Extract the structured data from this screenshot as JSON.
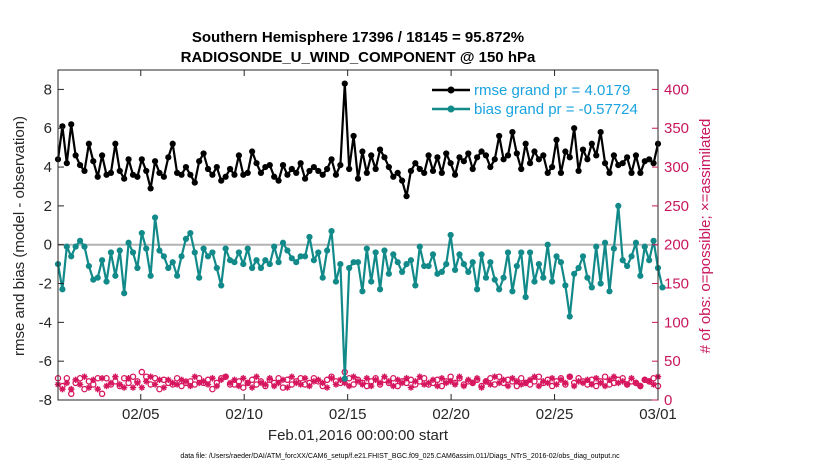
{
  "chart_data": {
    "type": "line",
    "title": "Southern Hemisphere 17396 / 18145 = 95.872%",
    "subtitle": "RADIOSONDE_U_WIND_COMPONENT @ 150 hPa",
    "xlabel": "Feb.01,2016 00:00:00 start",
    "ylabel": "rmse and bias (model - observation)",
    "ylabel_right": "# of obs: o=possible; ×=assimilated",
    "footnote": "data file: /Users/raeder/DAI/ATM_forcXX/CAM6_setup/f.e21.FHIST_BGC.f09_025.CAM6assim.011/Diags_NTrS_2016-02/obs_diag_output.nc",
    "x_ticks": [
      "02/05",
      "02/10",
      "02/15",
      "02/20",
      "02/25",
      "03/01"
    ],
    "x_tick_days": [
      4,
      9,
      14,
      19,
      24,
      29
    ],
    "xlim": [
      0,
      29
    ],
    "ylim": [
      -8,
      9
    ],
    "y_ticks": [
      "-8",
      "-6",
      "-4",
      "-2",
      "0",
      "2",
      "4",
      "6",
      "8"
    ],
    "ylim_right": [
      0,
      425
    ],
    "y_ticks_right": [
      "0",
      "50",
      "100",
      "150",
      "200",
      "250",
      "300",
      "350",
      "400"
    ],
    "colors": {
      "rmse": "#000000",
      "bias": "#138a8a",
      "obs": "#d6175f",
      "zero_line": "#b3b3b3",
      "legend_text": "#1aa3e0",
      "right_axis": "#c8175d"
    },
    "legend": [
      {
        "label": "rmse grand pr = 4.0179"
      },
      {
        "label": "bias grand pr = -0.57724"
      }
    ],
    "series": [
      {
        "name": "rmse",
        "values": [
          4.4,
          6.1,
          4.2,
          6.2,
          4.6,
          4.1,
          3.8,
          5.2,
          4.3,
          3.5,
          4.6,
          3.6,
          3.7,
          5.2,
          3.8,
          3.4,
          4.4,
          3.6,
          3.5,
          4.4,
          3.8,
          2.9,
          4.3,
          3.7,
          3.5,
          4.5,
          5.2,
          3.7,
          3.6,
          4.0,
          3.6,
          3.2,
          4.3,
          4.7,
          3.9,
          3.6,
          4.0,
          3.3,
          3.5,
          3.9,
          3.6,
          4.6,
          3.6,
          3.7,
          4.8,
          4.2,
          3.7,
          4.0,
          4.1,
          3.5,
          3.3,
          4.1,
          3.6,
          3.9,
          3.7,
          4.2,
          3.4,
          3.8,
          4.0,
          3.8,
          3.6,
          3.9,
          4.4,
          3.6,
          4.1,
          8.3,
          3.9,
          5.6,
          3.4,
          4.8,
          3.7,
          4.6,
          3.9,
          4.9,
          4.5,
          4.0,
          3.5,
          3.7,
          3.3,
          2.5,
          3.8,
          4.2,
          3.9,
          3.7,
          4.6,
          3.8,
          4.5,
          3.7,
          4.7,
          4.2,
          3.6,
          4.5,
          4.3,
          4.7,
          3.9,
          4.5,
          4.8,
          4.6,
          4.0,
          4.4,
          5.6,
          4.4,
          4.6,
          5.8,
          4.7,
          3.9,
          5.2,
          4.2,
          4.8,
          4.4,
          4.6,
          3.7,
          4.0,
          5.4,
          3.7,
          4.8,
          4.5,
          6.0,
          3.8,
          4.9,
          4.4,
          5.2,
          4.6,
          5.8,
          4.2,
          3.7,
          4.6,
          4.1,
          4.2,
          4.5,
          3.7,
          4.6,
          3.7,
          4.3,
          4.4,
          4.2,
          5.2
        ]
      },
      {
        "name": "bias",
        "values": [
          -1.0,
          -2.3,
          -0.1,
          -0.6,
          -0.1,
          0.2,
          -0.1,
          -1.1,
          -1.8,
          -1.7,
          -0.8,
          -1.9,
          -0.4,
          -1.6,
          -0.3,
          -2.5,
          0.1,
          -0.4,
          -1.2,
          0.6,
          -0.2,
          -1.6,
          1.4,
          -0.3,
          -0.6,
          -1.2,
          -0.9,
          -1.6,
          -0.6,
          0.3,
          0.6,
          -0.4,
          -1.7,
          -0.2,
          -0.6,
          -0.4,
          -1.2,
          -2.1,
          -0.2,
          -0.8,
          -0.9,
          -0.4,
          -1.0,
          -0.2,
          -1.2,
          -0.8,
          -1.2,
          -0.8,
          -1.0,
          -0.1,
          -0.9,
          0.1,
          -0.3,
          -0.7,
          -0.9,
          -0.6,
          -0.6,
          0.4,
          -0.8,
          -0.4,
          -1.7,
          -0.3,
          0.7,
          -1.9,
          -1.0,
          -6.9,
          -1.2,
          -0.9,
          -0.9,
          -2.4,
          -0.2,
          -1.9,
          -0.4,
          -2.3,
          -0.3,
          -1.5,
          -0.5,
          -0.9,
          -1.4,
          -1.0,
          -0.8,
          -2.1,
          -0.1,
          -1.1,
          -1.1,
          -0.5,
          -1.5,
          -1.4,
          -1.0,
          0.5,
          -1.3,
          -0.5,
          -1.0,
          -1.4,
          -0.9,
          -2.3,
          -0.5,
          -1.7,
          -0.9,
          -1.8,
          -2.3,
          -1.7,
          -0.4,
          -2.4,
          -1.1,
          -0.4,
          -2.7,
          -0.4,
          -1.9,
          -1.0,
          -1.7,
          0.0,
          -1.9,
          -0.6,
          -0.9,
          -2.1,
          -3.7,
          -1.5,
          -1.2,
          -0.6,
          -1.7,
          -2.2,
          -0.1,
          -2.0,
          0.1,
          -2.4,
          -0.2,
          2.0,
          -0.8,
          -1.1,
          -0.6,
          0.1,
          -1.6,
          -0.1,
          -0.8,
          0.2,
          -1.2,
          -2.2
        ]
      },
      {
        "name": "possible_obs",
        "values": [
          28,
          18,
          28,
          8,
          22,
          28,
          14,
          24,
          20,
          28,
          8,
          28,
          20,
          24,
          18,
          28,
          22,
          30,
          24,
          36,
          30,
          20,
          28,
          14,
          26,
          22,
          20,
          28,
          18,
          22,
          24,
          20,
          28,
          22,
          26,
          14,
          22,
          28,
          30,
          20,
          20,
          24,
          16,
          22,
          26,
          20,
          24,
          18,
          26,
          22,
          28,
          16,
          26,
          20,
          24,
          28,
          20,
          22,
          28,
          24,
          18,
          26,
          30,
          24,
          22,
          36,
          28,
          20,
          26,
          22,
          18,
          24,
          28,
          20,
          26,
          22,
          28,
          18,
          24,
          22,
          26,
          20,
          24,
          28,
          20,
          22,
          26,
          18,
          24,
          30,
          22,
          28,
          20,
          24,
          22,
          26,
          18,
          24,
          28,
          20,
          30,
          22,
          26,
          24,
          18,
          28,
          22,
          20,
          24,
          30,
          22,
          26,
          18,
          24,
          28,
          20,
          30,
          22,
          28,
          24,
          20,
          26,
          18,
          24,
          30,
          20,
          22,
          26,
          28,
          20,
          24,
          22,
          18,
          26,
          24,
          28,
          18
        ]
      },
      {
        "name": "assimilated_obs",
        "values": [
          20,
          14,
          22,
          14,
          26,
          20,
          30,
          16,
          26,
          14,
          28,
          18,
          22,
          30,
          20,
          16,
          28,
          16,
          22,
          16,
          24,
          30,
          20,
          26,
          16,
          26,
          22,
          20,
          26,
          24,
          18,
          30,
          22,
          24,
          20,
          28,
          18,
          26,
          30,
          22,
          26,
          18,
          28,
          22,
          16,
          30,
          22,
          20,
          28,
          18,
          22,
          26,
          16,
          30,
          22,
          20,
          28,
          18,
          24,
          26,
          22,
          16,
          28,
          20,
          26,
          22,
          18,
          30,
          24,
          20,
          28,
          18,
          26,
          22,
          30,
          24,
          18,
          26,
          22,
          28,
          16,
          24,
          30,
          20,
          22,
          26,
          18,
          28,
          22,
          24,
          20,
          30,
          18,
          26,
          22,
          28,
          16,
          24,
          20,
          30,
          22,
          26,
          18,
          28,
          24,
          20,
          22,
          26,
          30,
          18,
          24,
          22,
          28,
          20,
          26,
          22,
          30,
          18,
          24,
          22,
          26,
          20,
          28,
          22,
          18,
          26,
          30,
          22,
          24,
          20,
          28,
          22,
          18,
          26,
          24,
          20,
          30
        ]
      }
    ]
  }
}
